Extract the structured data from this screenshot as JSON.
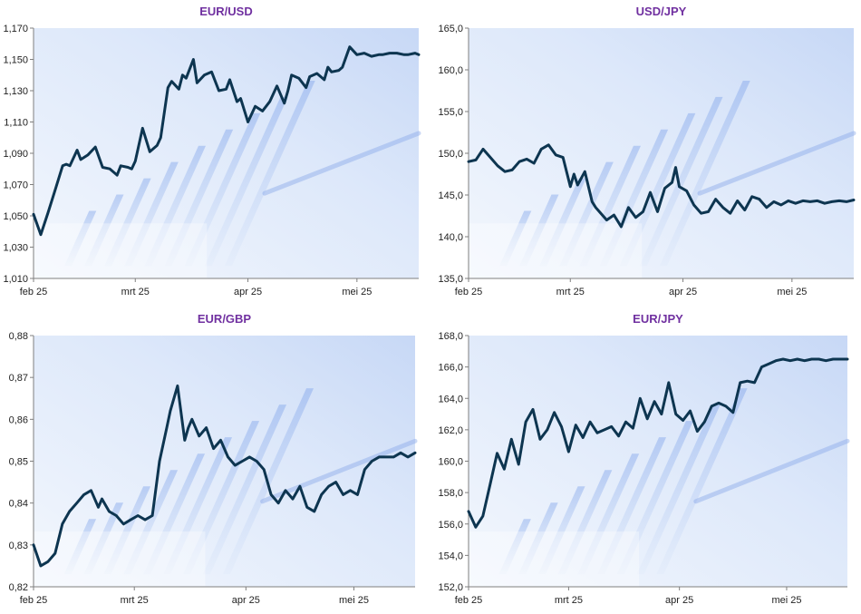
{
  "colors": {
    "title": "#7030a0",
    "line": "#0d3550",
    "axis": "#7f7f7f"
  },
  "chart_data": [
    {
      "type": "line",
      "title": "EUR/USD",
      "x_labels": [
        "feb 25",
        "mrt 25",
        "apr 25",
        "mei 25"
      ],
      "x_label_positions": [
        0,
        28,
        59,
        89
      ],
      "ylim": [
        1.01,
        1.17
      ],
      "y_ticks": [
        "1,010",
        "1,030",
        "1,050",
        "1,070",
        "1,090",
        "1,110",
        "1,130",
        "1,150",
        "1,170"
      ],
      "y_tick_values": [
        1.01,
        1.03,
        1.05,
        1.07,
        1.09,
        1.11,
        1.13,
        1.15,
        1.17
      ],
      "series": [
        {
          "x": [
            0,
            2,
            4,
            6,
            8,
            9,
            10,
            12,
            13,
            15,
            17,
            19,
            21,
            23,
            24,
            26,
            27,
            28,
            30,
            32,
            34,
            35,
            37,
            38,
            40,
            41,
            42,
            44,
            45,
            47,
            49,
            51,
            53,
            54,
            56,
            57,
            59,
            61,
            63,
            65,
            67,
            69,
            70,
            71,
            73,
            75,
            76,
            78,
            80,
            81,
            82,
            84,
            85,
            87,
            89,
            91,
            93,
            95,
            96,
            98,
            100,
            102,
            103,
            105,
            106
          ],
          "y": [
            1.051,
            1.038,
            1.052,
            1.067,
            1.082,
            1.083,
            1.082,
            1.092,
            1.086,
            1.089,
            1.094,
            1.081,
            1.08,
            1.076,
            1.082,
            1.081,
            1.08,
            1.085,
            1.106,
            1.091,
            1.095,
            1.1,
            1.132,
            1.136,
            1.131,
            1.14,
            1.138,
            1.15,
            1.135,
            1.14,
            1.142,
            1.13,
            1.131,
            1.137,
            1.123,
            1.125,
            1.11,
            1.12,
            1.117,
            1.123,
            1.133,
            1.122,
            1.13,
            1.14,
            1.138,
            1.132,
            1.139,
            1.141,
            1.137,
            1.145,
            1.142,
            1.143,
            1.145,
            1.158,
            1.153,
            1.154,
            1.152,
            1.153,
            1.153,
            1.154,
            1.154,
            1.153,
            1.153,
            1.154,
            1.153
          ]
        }
      ]
    },
    {
      "type": "line",
      "title": "USD/JPY",
      "x_labels": [
        "feb 25",
        "mrt 25",
        "apr 25",
        "mei 25"
      ],
      "x_label_positions": [
        0,
        28,
        59,
        89
      ],
      "ylim": [
        135,
        165
      ],
      "y_ticks": [
        "135,0",
        "140,0",
        "145,0",
        "150,0",
        "155,0",
        "160,0",
        "165,0"
      ],
      "y_tick_values": [
        135,
        140,
        145,
        150,
        155,
        160,
        165
      ],
      "series": [
        {
          "x": [
            0,
            2,
            4,
            6,
            8,
            10,
            12,
            14,
            16,
            18,
            20,
            22,
            24,
            26,
            28,
            29,
            30,
            32,
            34,
            35,
            36,
            38,
            40,
            42,
            44,
            46,
            48,
            50,
            52,
            54,
            56,
            57,
            58,
            60,
            62,
            64,
            66,
            68,
            70,
            72,
            74,
            76,
            78,
            80,
            82,
            84,
            86,
            88,
            90,
            92,
            94,
            96,
            98,
            100,
            102,
            104,
            106
          ],
          "y": [
            149.0,
            149.2,
            150.5,
            149.5,
            148.5,
            147.8,
            148.0,
            149.0,
            149.3,
            148.8,
            150.5,
            151.0,
            149.8,
            149.5,
            146.0,
            147.5,
            146.2,
            147.8,
            144.2,
            143.5,
            143.0,
            142.0,
            142.6,
            141.2,
            143.5,
            142.3,
            143.0,
            145.3,
            143.0,
            145.8,
            146.5,
            148.3,
            146.0,
            145.5,
            143.8,
            142.8,
            143.0,
            144.5,
            143.5,
            142.8,
            144.3,
            143.2,
            144.8,
            144.5,
            143.5,
            144.2,
            143.8,
            144.3,
            144.0,
            144.3,
            144.2,
            144.3,
            144.0,
            144.2,
            144.3,
            144.2,
            144.4
          ]
        }
      ]
    },
    {
      "type": "line",
      "title": "EUR/GBP",
      "x_labels": [
        "feb 25",
        "mrt 25",
        "apr 25",
        "mei 25"
      ],
      "x_label_positions": [
        0,
        28,
        59,
        89
      ],
      "ylim": [
        0.82,
        0.88
      ],
      "y_ticks": [
        "0,82",
        "0,83",
        "0,84",
        "0,85",
        "0,86",
        "0,87",
        "0,88"
      ],
      "y_tick_values": [
        0.82,
        0.83,
        0.84,
        0.85,
        0.86,
        0.87,
        0.88
      ],
      "series": [
        {
          "x": [
            0,
            2,
            4,
            6,
            8,
            10,
            12,
            14,
            16,
            18,
            19,
            21,
            23,
            25,
            27,
            29,
            31,
            33,
            35,
            37,
            38,
            40,
            42,
            43,
            44,
            46,
            48,
            50,
            52,
            54,
            56,
            58,
            60,
            62,
            64,
            66,
            68,
            70,
            72,
            74,
            76,
            78,
            80,
            82,
            84,
            86,
            88,
            90,
            92,
            94,
            96,
            98,
            100,
            102,
            104,
            106
          ],
          "y": [
            0.83,
            0.825,
            0.826,
            0.828,
            0.835,
            0.838,
            0.84,
            0.842,
            0.843,
            0.839,
            0.841,
            0.838,
            0.837,
            0.835,
            0.836,
            0.837,
            0.836,
            0.837,
            0.85,
            0.858,
            0.862,
            0.868,
            0.855,
            0.858,
            0.86,
            0.856,
            0.858,
            0.853,
            0.855,
            0.851,
            0.849,
            0.85,
            0.851,
            0.85,
            0.848,
            0.842,
            0.84,
            0.843,
            0.841,
            0.844,
            0.839,
            0.838,
            0.842,
            0.844,
            0.845,
            0.842,
            0.843,
            0.842,
            0.848,
            0.85,
            0.851,
            0.851,
            0.851,
            0.852,
            0.851,
            0.852
          ]
        }
      ]
    },
    {
      "type": "line",
      "title": "EUR/JPY",
      "x_labels": [
        "feb 25",
        "mrt 25",
        "apr 25",
        "mei 25"
      ],
      "x_label_positions": [
        0,
        28,
        59,
        89
      ],
      "ylim": [
        152,
        168
      ],
      "y_ticks": [
        "152,0",
        "154,0",
        "156,0",
        "158,0",
        "160,0",
        "162,0",
        "164,0",
        "166,0",
        "168,0"
      ],
      "y_tick_values": [
        152,
        154,
        156,
        158,
        160,
        162,
        164,
        166,
        168
      ],
      "series": [
        {
          "x": [
            0,
            2,
            4,
            6,
            8,
            10,
            12,
            14,
            16,
            18,
            20,
            22,
            24,
            26,
            28,
            30,
            32,
            34,
            36,
            38,
            40,
            42,
            44,
            46,
            48,
            50,
            52,
            54,
            56,
            58,
            60,
            62,
            64,
            66,
            68,
            70,
            72,
            74,
            76,
            78,
            80,
            82,
            84,
            86,
            88,
            90,
            92,
            94,
            96,
            98,
            100,
            102,
            104,
            106
          ],
          "y": [
            156.8,
            155.8,
            156.5,
            158.5,
            160.5,
            159.5,
            161.4,
            159.8,
            162.5,
            163.3,
            161.4,
            162.0,
            163.1,
            162.2,
            160.6,
            162.3,
            161.5,
            162.5,
            161.8,
            162.0,
            162.2,
            161.6,
            162.5,
            162.1,
            164.0,
            162.7,
            163.8,
            163.0,
            165.0,
            163.0,
            162.6,
            163.2,
            161.9,
            162.5,
            163.5,
            163.7,
            163.5,
            163.1,
            165.0,
            165.1,
            165.0,
            166.0,
            166.2,
            166.4,
            166.5,
            166.4,
            166.5,
            166.4,
            166.5,
            166.5,
            166.4,
            166.5,
            166.5,
            166.5
          ]
        }
      ]
    }
  ]
}
